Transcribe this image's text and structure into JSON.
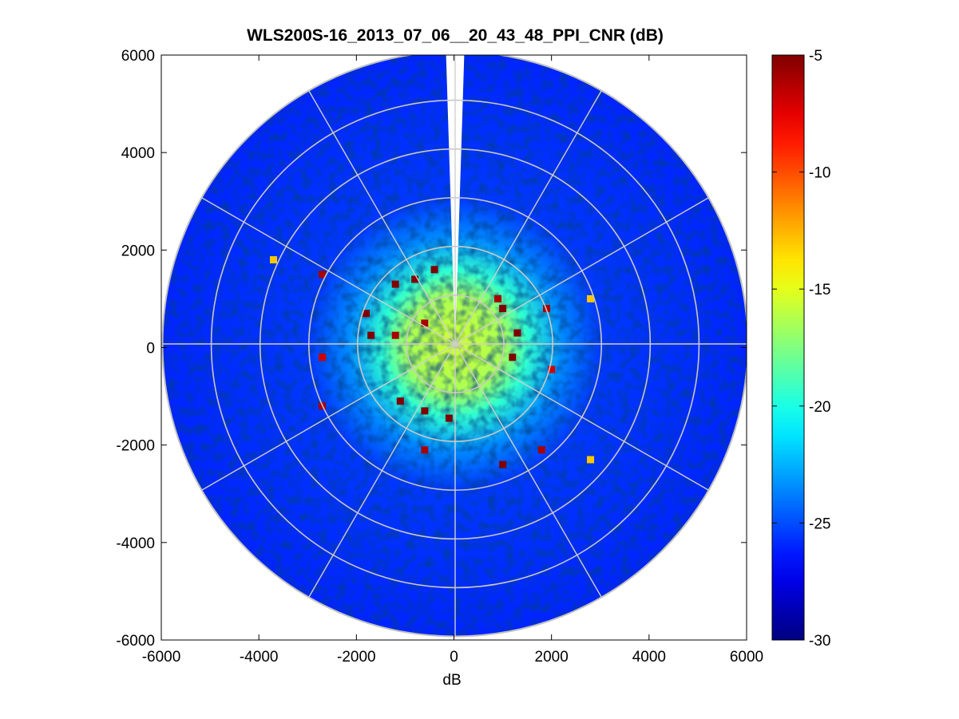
{
  "figure": {
    "title": "WLS200S-16_2013_07_06__20_43_48_PPI_CNR (dB)"
  },
  "chart_data": {
    "type": "heatmap",
    "projection": "polar-ppi",
    "title": "WLS200S-16_2013_07_06__20_43_48_PPI_CNR (dB)",
    "xlabel": "dB",
    "ylabel": "",
    "xlim": [
      -6000,
      6000
    ],
    "ylim": [
      -6000,
      6000
    ],
    "xticks": [
      -6000,
      -4000,
      -2000,
      0,
      2000,
      4000,
      6000
    ],
    "yticks": [
      -6000,
      -4000,
      -2000,
      0,
      2000,
      4000,
      6000
    ],
    "grid": true,
    "range_rings": [
      1000,
      2000,
      3000,
      4000,
      5000,
      6000
    ],
    "spoke_angles_deg": [
      0,
      30,
      60,
      90,
      120,
      150,
      180,
      210,
      240,
      270,
      300,
      330
    ],
    "max_range": 6000,
    "gap_azimuth_deg": [
      -1.8,
      1.8
    ],
    "colorbar": {
      "colormap": "jet",
      "clim": [
        -30,
        -5
      ],
      "ticks": [
        -30,
        -25,
        -20,
        -15,
        -10,
        -5
      ]
    },
    "cnr_profile": [
      {
        "range": 0,
        "value": -15.5
      },
      {
        "range": 1000,
        "value": -16.5
      },
      {
        "range": 1500,
        "value": -19.5
      },
      {
        "range": 2200,
        "value": -23.5
      },
      {
        "range": 3000,
        "value": -25.5
      },
      {
        "range": 6000,
        "value": -26.0
      }
    ],
    "hotspots": [
      {
        "x": -1200,
        "y": 1300,
        "value": -5
      },
      {
        "x": -800,
        "y": 1400,
        "value": -5
      },
      {
        "x": -400,
        "y": 1600,
        "value": -5
      },
      {
        "x": -1800,
        "y": 700,
        "value": -5
      },
      {
        "x": -1700,
        "y": 250,
        "value": -5
      },
      {
        "x": -1200,
        "y": 250,
        "value": -6
      },
      {
        "x": -600,
        "y": 500,
        "value": -6
      },
      {
        "x": 1000,
        "y": 800,
        "value": -5
      },
      {
        "x": 1300,
        "y": 300,
        "value": -5
      },
      {
        "x": 1200,
        "y": -200,
        "value": -5
      },
      {
        "x": 900,
        "y": 1000,
        "value": -6
      },
      {
        "x": 1900,
        "y": 800,
        "value": -6
      },
      {
        "x": -600,
        "y": -1300,
        "value": -5
      },
      {
        "x": -100,
        "y": -1450,
        "value": -5
      },
      {
        "x": -1100,
        "y": -1100,
        "value": -5
      },
      {
        "x": -600,
        "y": -2100,
        "value": -6
      },
      {
        "x": 1000,
        "y": -2400,
        "value": -5
      },
      {
        "x": 1800,
        "y": -2100,
        "value": -6
      },
      {
        "x": 2800,
        "y": -2300,
        "value": -13
      },
      {
        "x": -3700,
        "y": 1800,
        "value": -13
      },
      {
        "x": -2700,
        "y": 1500,
        "value": -6
      },
      {
        "x": -2700,
        "y": -1200,
        "value": -6
      },
      {
        "x": -2700,
        "y": -200,
        "value": -7
      },
      {
        "x": 2800,
        "y": 1000,
        "value": -13
      },
      {
        "x": 2000,
        "y": -450,
        "value": -7
      }
    ]
  }
}
